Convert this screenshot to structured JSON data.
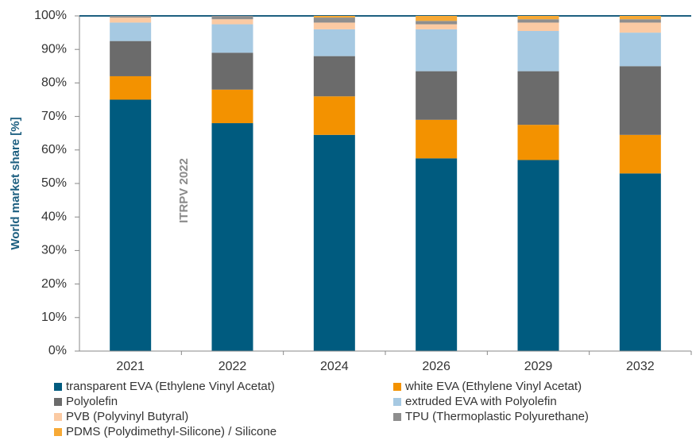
{
  "chart_data": {
    "type": "stacked_bar",
    "y_axis_label": "World market share [%]",
    "annotation": "ITRPV 2022",
    "categories": [
      "2021",
      "2022",
      "2024",
      "2026",
      "2029",
      "2032"
    ],
    "series": [
      {
        "name": "transparent EVA (Ethylene Vinyl Acetat)",
        "color": "#005b7f",
        "values": [
          75,
          68,
          64.5,
          57.5,
          57,
          53
        ]
      },
      {
        "name": "white EVA (Ethylene Vinyl Acetat)",
        "color": "#f39200",
        "values": [
          7,
          10,
          11.5,
          11.5,
          10.5,
          11.5
        ]
      },
      {
        "name": "Polyolefin",
        "color": "#6b6b6b",
        "values": [
          10.5,
          11,
          12,
          14.5,
          16,
          20.5
        ]
      },
      {
        "name": "extruded EVA with Polyolefin",
        "color": "#a6c9e2",
        "values": [
          5.5,
          8.5,
          8,
          12.5,
          12,
          10
        ]
      },
      {
        "name": "PVB (Polyvinyl Butyral)",
        "color": "#fbcaa3",
        "values": [
          1.5,
          1.5,
          2,
          1.5,
          2.5,
          3
        ]
      },
      {
        "name": "TPU (Thermoplastic Polyurethane)",
        "color": "#8e8e8e",
        "values": [
          0.5,
          1,
          1.5,
          1,
          1,
          1
        ]
      },
      {
        "name": "PDMS (Polydimethyl-Silicone) / Silicone",
        "color": "#f7a935",
        "values": [
          0,
          0,
          0.5,
          1.5,
          1,
          1
        ]
      }
    ],
    "ylim": [
      0,
      100
    ],
    "yticks": [
      {
        "value": 0,
        "label": "0%"
      },
      {
        "value": 10,
        "label": "10%"
      },
      {
        "value": 20,
        "label": "20%"
      },
      {
        "value": 30,
        "label": "30%"
      },
      {
        "value": 40,
        "label": "40%"
      },
      {
        "value": 50,
        "label": "50%"
      },
      {
        "value": 60,
        "label": "60%"
      },
      {
        "value": 70,
        "label": "70%"
      },
      {
        "value": 80,
        "label": "80%"
      },
      {
        "value": 90,
        "label": "90%"
      },
      {
        "value": 100,
        "label": "100%"
      }
    ],
    "grid": false
  }
}
